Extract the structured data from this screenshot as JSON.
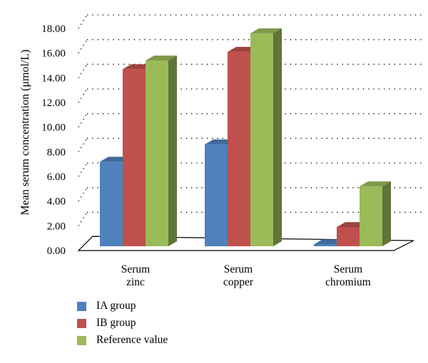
{
  "chart_data": {
    "type": "bar",
    "ylabel": "Mean serum concentration (μmol/L)",
    "ylim": [
      0,
      18
    ],
    "yticks": [
      "0.00",
      "2.00",
      "4.00",
      "6.00",
      "8.00",
      "10.00",
      "12.00",
      "14.00",
      "16.00",
      "18.00"
    ],
    "categories": [
      "Serum\nzinc",
      "Serum\ncopper",
      "Serum\nchromium"
    ],
    "series": [
      {
        "name": "IA group",
        "color": "#4F81BD",
        "values": [
          7.2,
          8.6,
          0.5
        ]
      },
      {
        "name": "IB group",
        "color": "#C0504D",
        "values": [
          14.7,
          16.1,
          1.9
        ]
      },
      {
        "name": "Reference value",
        "color": "#9BBB59",
        "values": [
          15.4,
          17.6,
          5.2
        ]
      }
    ],
    "grid": true,
    "legend_position": "bottom-left",
    "style": "3d-clustered-column"
  }
}
